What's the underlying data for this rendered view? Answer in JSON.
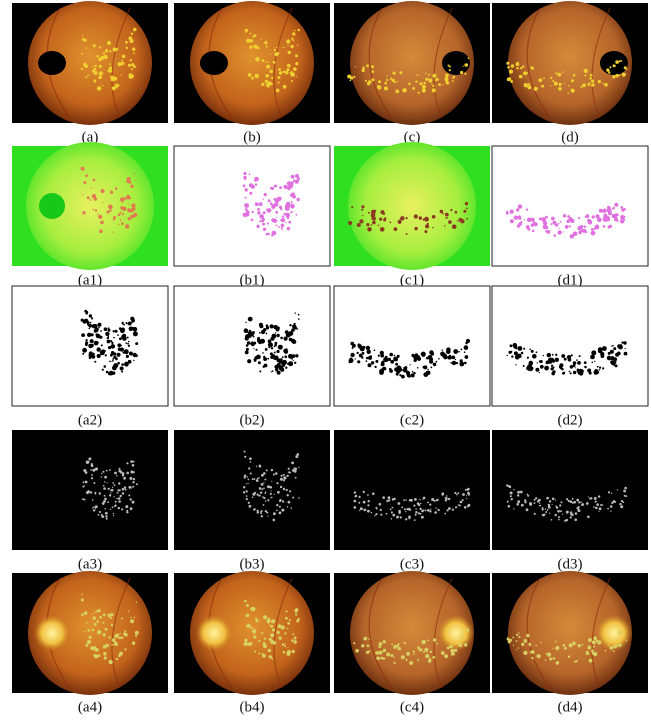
{
  "figure": {
    "rows": [
      [
        "(a)",
        "(b)",
        "(c)",
        "(d)"
      ],
      [
        "(a1)",
        "(b1)",
        "(c1)",
        "(d1)"
      ],
      [
        "(a2)",
        "(b2)",
        "(c2)",
        "(d2)"
      ],
      [
        "(a3)",
        "(b3)",
        "(c3)",
        "(d3)"
      ],
      [
        "(a4)",
        "(b4)",
        "(c4)",
        "(d4)"
      ]
    ]
  }
}
